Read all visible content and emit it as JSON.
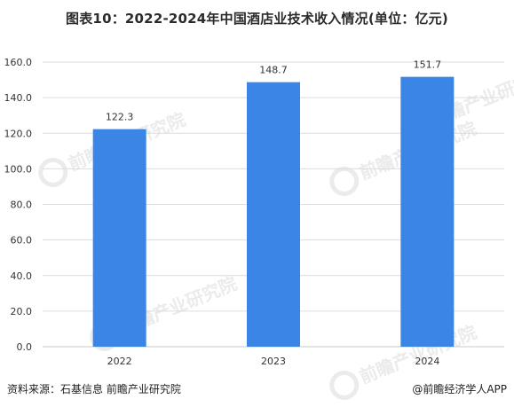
{
  "title": "图表10：2022-2024年中国酒店业技术收入情况(单位：亿元)",
  "footer": {
    "source": "资料来源：石基信息 前瞻产业研究院",
    "brand": "@前瞻经济学人APP"
  },
  "watermark": {
    "text": "前瞻产业研究院"
  },
  "colors": {
    "bar": "#3a85e6",
    "grid": "#dcdcdc",
    "axis": "#c8c8c8",
    "watermark": "#e9e9e9"
  },
  "chart_data": {
    "type": "bar",
    "title": "图表10：2022-2024年中国酒店业技术收入情况(单位：亿元)",
    "categories": [
      "2022",
      "2023",
      "2024"
    ],
    "values": [
      122.3,
      148.7,
      151.7
    ],
    "value_labels": [
      "122.3",
      "148.7",
      "151.7"
    ],
    "xlabel": "",
    "ylabel": "",
    "ylim": [
      0,
      160
    ],
    "yticks": [
      "0.0",
      "20.0",
      "40.0",
      "60.0",
      "80.0",
      "100.0",
      "120.0",
      "140.0",
      "160.0"
    ],
    "grid": true,
    "legend": "none"
  }
}
